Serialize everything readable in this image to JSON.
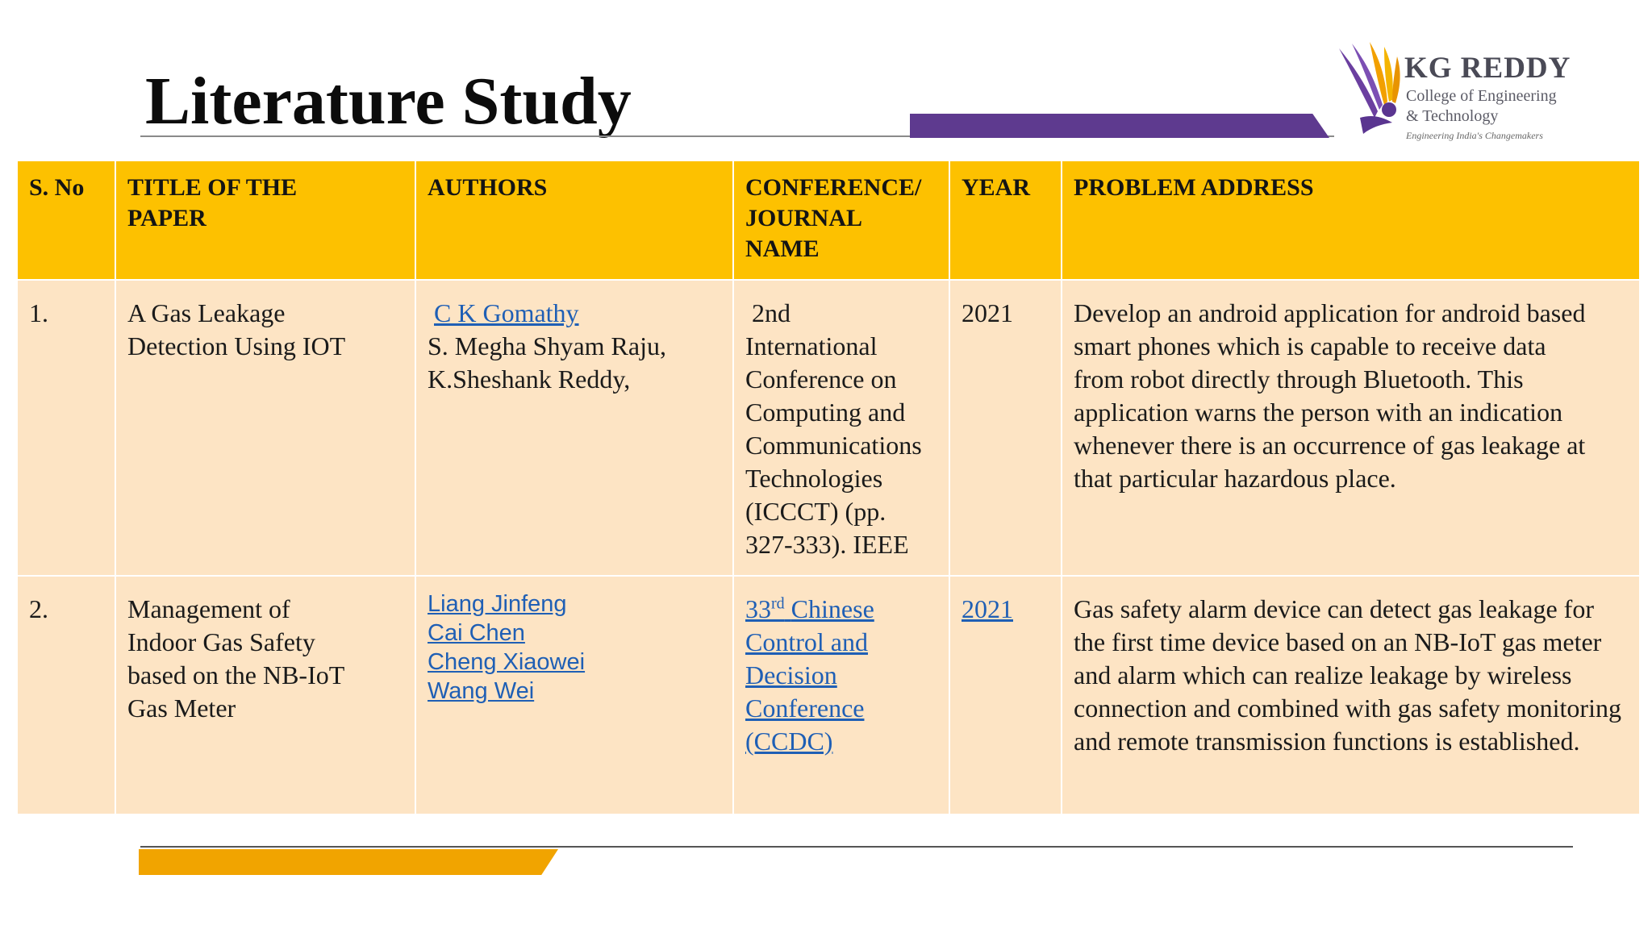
{
  "slide": {
    "title": "Literature Study"
  },
  "logo": {
    "name": "KG REDDY",
    "subtitle_line1": "College of Engineering",
    "subtitle_line2": "& Technology",
    "tagline": "Engineering India's Changemakers",
    "colors": {
      "purple": "#5e3a8f",
      "gold": "#f1a400"
    }
  },
  "table": {
    "headers": {
      "sno": "S. No",
      "title": [
        "TITLE OF THE",
        "PAPER"
      ],
      "authors": "AUTHORS",
      "venue": [
        "CONFERENCE/",
        "JOURNAL",
        "NAME"
      ],
      "year": "YEAR",
      "problem": "PROBLEM ADDRESS"
    },
    "rows": [
      {
        "sno": "1.",
        "title": [
          "A Gas Leakage",
          "Detection Using IOT"
        ],
        "authors": [
          "C K Gomathy",
          "S. Megha Shyam Raju,",
          "K.Sheshank Reddy,"
        ],
        "venue": [
          "2nd",
          "International",
          "Conference on",
          "Computing and",
          "Communications",
          "Technologies",
          "(ICCCT) (pp.",
          "327-333). IEEE"
        ],
        "year": "2021",
        "problem": [
          "Develop an android application for android based",
          "smart phones which is capable to receive data",
          "from robot directly through Bluetooth. This",
          "application warns the person with an indication",
          "whenever there is an occurrence of gas leakage at",
          "that particular hazardous place."
        ]
      },
      {
        "sno": "2.",
        "title": [
          "Management of",
          "Indoor Gas Safety",
          "based on the NB-IoT",
          "Gas Meter"
        ],
        "authors": [
          "Liang Jinfeng",
          "Cai Chen",
          "Cheng Xiaowei",
          "Wang Wei"
        ],
        "venue_num": "33",
        "venue_sup": "rd",
        "venue_first_rest": "Chinese",
        "venue": [
          "Control and",
          "Decision",
          "Conference",
          "(CCDC)"
        ],
        "year": "2021",
        "problem": "Gas safety alarm device can detect gas leakage for the first time device based on an NB-IoT gas meter and alarm which can realize leakage by wireless connection and combined with gas safety monitoring and remote transmission functions is established."
      }
    ]
  }
}
